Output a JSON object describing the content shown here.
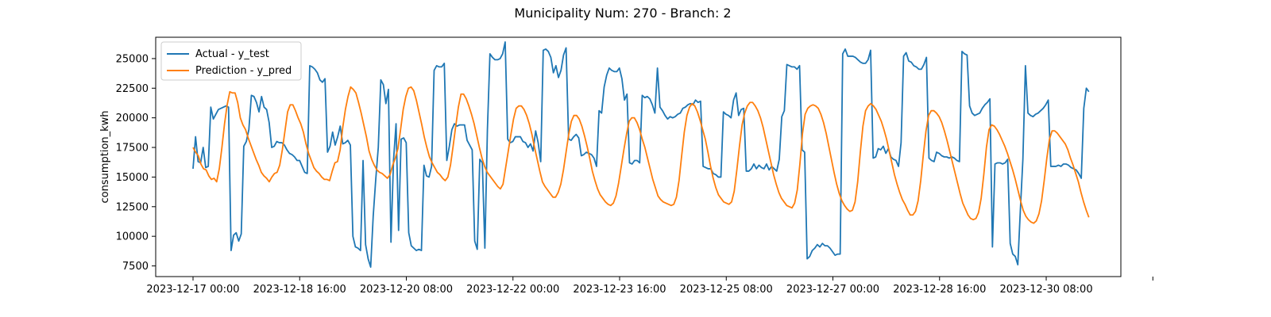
{
  "chart_data": {
    "type": "line",
    "title": "Municipality Num: 270 - Branch: 2",
    "xlabel": "",
    "ylabel": "consumption_kwh",
    "x_ticks": [
      "2023-12-17 00:00",
      "2023-12-18 16:00",
      "2023-12-20 08:00",
      "2023-12-22 00:00",
      "2023-12-23 16:00",
      "2023-12-25 08:00",
      "2023-12-27 00:00",
      "2023-12-28 16:00",
      "2023-12-30 08:00",
      ""
    ],
    "x_start": "2023-12-17 00:00",
    "x_end": "2023-12-31 00:00",
    "x_range": [
      "2023-12-16 10:00",
      "2023-12-31 12:00"
    ],
    "ylim": [
      6600,
      26800
    ],
    "y_ticks": [
      7500,
      10000,
      12500,
      15000,
      17500,
      20000,
      22500,
      25000
    ],
    "grid": false,
    "legend_position": "top-left",
    "series": [
      {
        "name": "Actual - y_test",
        "color": "#1f77b4",
        "values": [
          15700,
          18400,
          16300,
          16200,
          17500,
          15800,
          15900,
          20900,
          19900,
          20300,
          20700,
          20800,
          20900,
          21000,
          20900,
          8800,
          10100,
          10300,
          9600,
          10200,
          17600,
          18000,
          19000,
          21900,
          21800,
          21300,
          20500,
          21800,
          20900,
          20700,
          19600,
          17500,
          17600,
          18000,
          17900,
          17900,
          17700,
          17300,
          17000,
          16900,
          16700,
          16400,
          16400,
          15900,
          15400,
          15300,
          24400,
          24300,
          24100,
          23800,
          23200,
          23000,
          23300,
          17100,
          17600,
          18800,
          17700,
          18400,
          19300,
          17800,
          17900,
          18100,
          17700,
          10000,
          9100,
          9000,
          8800,
          16400,
          9300,
          8100,
          7400,
          11700,
          14800,
          17500,
          23200,
          22800,
          21200,
          22400,
          9500,
          16400,
          19500,
          10500,
          18200,
          18300,
          17900,
          10300,
          9200,
          9000,
          8800,
          8900,
          8800,
          16000,
          15100,
          15000,
          15900,
          24000,
          24400,
          24300,
          24300,
          24600,
          16400,
          17600,
          19000,
          19500,
          19300,
          19400,
          19400,
          19400,
          18100,
          17700,
          17300,
          9600,
          8900,
          16500,
          16200,
          9000,
          19000,
          25400,
          25100,
          24900,
          24900,
          25000,
          25400,
          26400,
          18200,
          17900,
          18000,
          18400,
          18400,
          18400,
          18000,
          17900,
          17500,
          17800,
          17200,
          18900,
          17900,
          16300,
          25700,
          25800,
          25600,
          25100,
          23800,
          24400,
          23400,
          24000,
          25300,
          25900,
          18200,
          18100,
          18400,
          18600,
          18300,
          16800,
          16900,
          17100,
          17000,
          16900,
          16600,
          15900,
          20600,
          20400,
          22600,
          23600,
          24200,
          24000,
          23900,
          23900,
          24200,
          23300,
          21500,
          22000,
          16200,
          16100,
          16400,
          16400,
          16200,
          21900,
          21700,
          21800,
          21600,
          21100,
          20400,
          24200,
          20900,
          20600,
          20200,
          19900,
          20100,
          20000,
          20100,
          20300,
          20400,
          20800,
          20900,
          21100,
          21200,
          21100,
          21500,
          21300,
          21400,
          15900,
          15800,
          15700,
          15700,
          15300,
          15200,
          15000,
          15000,
          20500,
          20300,
          20200,
          20000,
          21500,
          22100,
          20200,
          20700,
          20800,
          15500,
          15500,
          15700,
          16100,
          15700,
          16000,
          15800,
          15700,
          16100,
          15600,
          15900,
          15700,
          15500,
          16500,
          20100,
          20600,
          24500,
          24400,
          24300,
          24300,
          24100,
          24400,
          17300,
          17100,
          8100,
          8300,
          8800,
          9000,
          9300,
          9100,
          9400,
          9200,
          9200,
          9000,
          8700,
          8400,
          8500,
          8500,
          25400,
          25800,
          25200,
          25200,
          25200,
          25100,
          24900,
          24700,
          24600,
          24600,
          24900,
          25700,
          16600,
          16700,
          17400,
          17300,
          17600,
          17000,
          17400,
          16700,
          16500,
          16400,
          15900,
          17900,
          25200,
          25500,
          24800,
          24700,
          24400,
          24300,
          24100,
          24100,
          24500,
          25100,
          16600,
          16400,
          16300,
          17100,
          17000,
          16800,
          16700,
          16700,
          16600,
          16700,
          16600,
          16400,
          16300,
          25600,
          25400,
          25300,
          21000,
          20400,
          20200,
          20300,
          20400,
          20800,
          21100,
          21300,
          21600,
          9100,
          16100,
          16200,
          16200,
          16100,
          16200,
          16500,
          9400,
          8500,
          8300,
          7600,
          12200,
          16500,
          24400,
          20400,
          20200,
          20100,
          20300,
          20400,
          20600,
          20800,
          21100,
          21500,
          15900,
          15900,
          15900,
          16000,
          15900,
          16100,
          16100,
          16000,
          15800,
          15700,
          15600,
          15300,
          14900,
          20800,
          22500,
          22200
        ]
      },
      {
        "name": "Prediction - y_pred",
        "color": "#ff7f0e",
        "values": [
          17500,
          17100,
          16800,
          16100,
          15700,
          15600,
          15100,
          14800,
          14900,
          14600,
          15700,
          17500,
          19500,
          21100,
          22200,
          22100,
          22100,
          21300,
          20000,
          19400,
          19000,
          18300,
          17700,
          17100,
          16500,
          16000,
          15400,
          15100,
          14900,
          14600,
          15000,
          15300,
          15400,
          16000,
          17300,
          18900,
          20500,
          21100,
          21100,
          20600,
          20000,
          19500,
          18800,
          17800,
          17000,
          16400,
          15800,
          15500,
          15300,
          15000,
          14800,
          14800,
          14700,
          15500,
          16200,
          16300,
          17300,
          19200,
          20700,
          21800,
          22600,
          22400,
          22100,
          21300,
          20400,
          19400,
          18400,
          17200,
          16500,
          16000,
          15600,
          15400,
          15300,
          15100,
          14900,
          15200,
          16000,
          16600,
          17400,
          19000,
          20700,
          21800,
          22500,
          22600,
          22300,
          21500,
          20500,
          19500,
          18400,
          17500,
          16700,
          16200,
          15800,
          15400,
          15200,
          14900,
          14700,
          15000,
          16000,
          17600,
          19300,
          20900,
          22000,
          22000,
          21600,
          21000,
          20300,
          19500,
          18500,
          17500,
          16600,
          15900,
          15400,
          15100,
          14800,
          14500,
          14200,
          14000,
          14400,
          15800,
          17200,
          18600,
          19900,
          20800,
          21000,
          21000,
          20700,
          20200,
          19500,
          18600,
          17500,
          16500,
          15500,
          14600,
          14200,
          13900,
          13600,
          13300,
          13300,
          13700,
          14400,
          15600,
          17100,
          18600,
          19700,
          20200,
          20200,
          19900,
          19300,
          18500,
          17600,
          16600,
          15500,
          14700,
          14000,
          13500,
          13200,
          12900,
          12700,
          12600,
          12800,
          13400,
          14500,
          15900,
          17300,
          18600,
          19700,
          20000,
          20000,
          19600,
          19000,
          18200,
          17500,
          16600,
          15700,
          14800,
          14100,
          13400,
          13100,
          12900,
          12800,
          12700,
          12600,
          12700,
          13300,
          14700,
          16800,
          18800,
          20200,
          20900,
          21200,
          21000,
          20500,
          19800,
          19000,
          18200,
          17100,
          15900,
          14900,
          14100,
          13500,
          13200,
          12900,
          12800,
          12700,
          12900,
          13800,
          15600,
          17600,
          19400,
          20400,
          21000,
          21300,
          21300,
          21000,
          20600,
          20000,
          19200,
          18200,
          17200,
          16200,
          15200,
          14400,
          13700,
          13200,
          12900,
          12600,
          12500,
          12400,
          12800,
          13900,
          16100,
          18700,
          20300,
          20800,
          21000,
          21100,
          21000,
          20800,
          20300,
          19600,
          18700,
          17600,
          16500,
          15400,
          14400,
          13600,
          13000,
          12600,
          12300,
          12100,
          12200,
          12900,
          14600,
          17100,
          19300,
          20600,
          21000,
          21200,
          21000,
          20700,
          20200,
          19700,
          19000,
          18200,
          17200,
          16200,
          15200,
          14400,
          13700,
          13100,
          12700,
          12200,
          11800,
          11800,
          12100,
          13000,
          14700,
          16900,
          18900,
          20200,
          20600,
          20600,
          20400,
          20100,
          19600,
          18900,
          18100,
          17200,
          16300,
          15400,
          14500,
          13600,
          12800,
          12300,
          11800,
          11500,
          11400,
          11500,
          12000,
          13200,
          15200,
          17500,
          19000,
          19400,
          19300,
          19000,
          18600,
          18100,
          17600,
          17000,
          16300,
          15600,
          14800,
          13900,
          13000,
          12200,
          11700,
          11400,
          11200,
          11100,
          11300,
          11900,
          13000,
          14700,
          16600,
          18200,
          18900,
          18900,
          18700,
          18400,
          18100,
          17800,
          17300,
          16600,
          16000,
          15300,
          14600,
          13700,
          12900,
          12200,
          11600
        ]
      }
    ]
  }
}
